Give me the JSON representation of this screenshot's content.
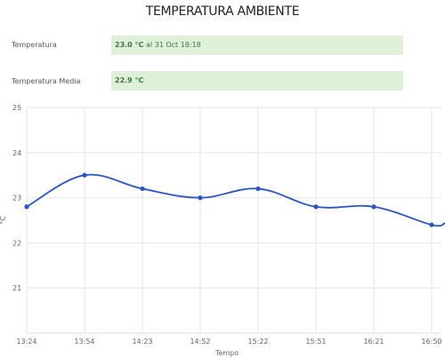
{
  "page": {
    "title": "TEMPERATURA AMBIENTE"
  },
  "fields": {
    "current": {
      "label": "Temperatura",
      "value": "23.0 °C",
      "suffix": "al 31 Oct 18:18"
    },
    "average": {
      "label": "Temperatura Media",
      "value": "22.9 °C"
    }
  },
  "colors": {
    "line": "#2a55c8",
    "point": "#2a55c8",
    "highlight_bg": "#dff0d8",
    "highlight_text": "#3c763d",
    "grid": "#e6e6e6"
  },
  "chart_data": {
    "type": "line",
    "xlabel": "Tempo",
    "ylabel": "°C",
    "ylim": [
      20,
      25
    ],
    "y_ticks": [
      "21",
      "22",
      "23",
      "24",
      "25"
    ],
    "x_ticks": [
      "13:24",
      "13:54",
      "14:23",
      "14:52",
      "15:22",
      "15:51",
      "16:21",
      "16:50"
    ],
    "grid": true,
    "series": [
      {
        "values": [
          22.8,
          23.5,
          23.2,
          23.0,
          23.2,
          22.8,
          22.8,
          22.4
        ]
      }
    ]
  }
}
